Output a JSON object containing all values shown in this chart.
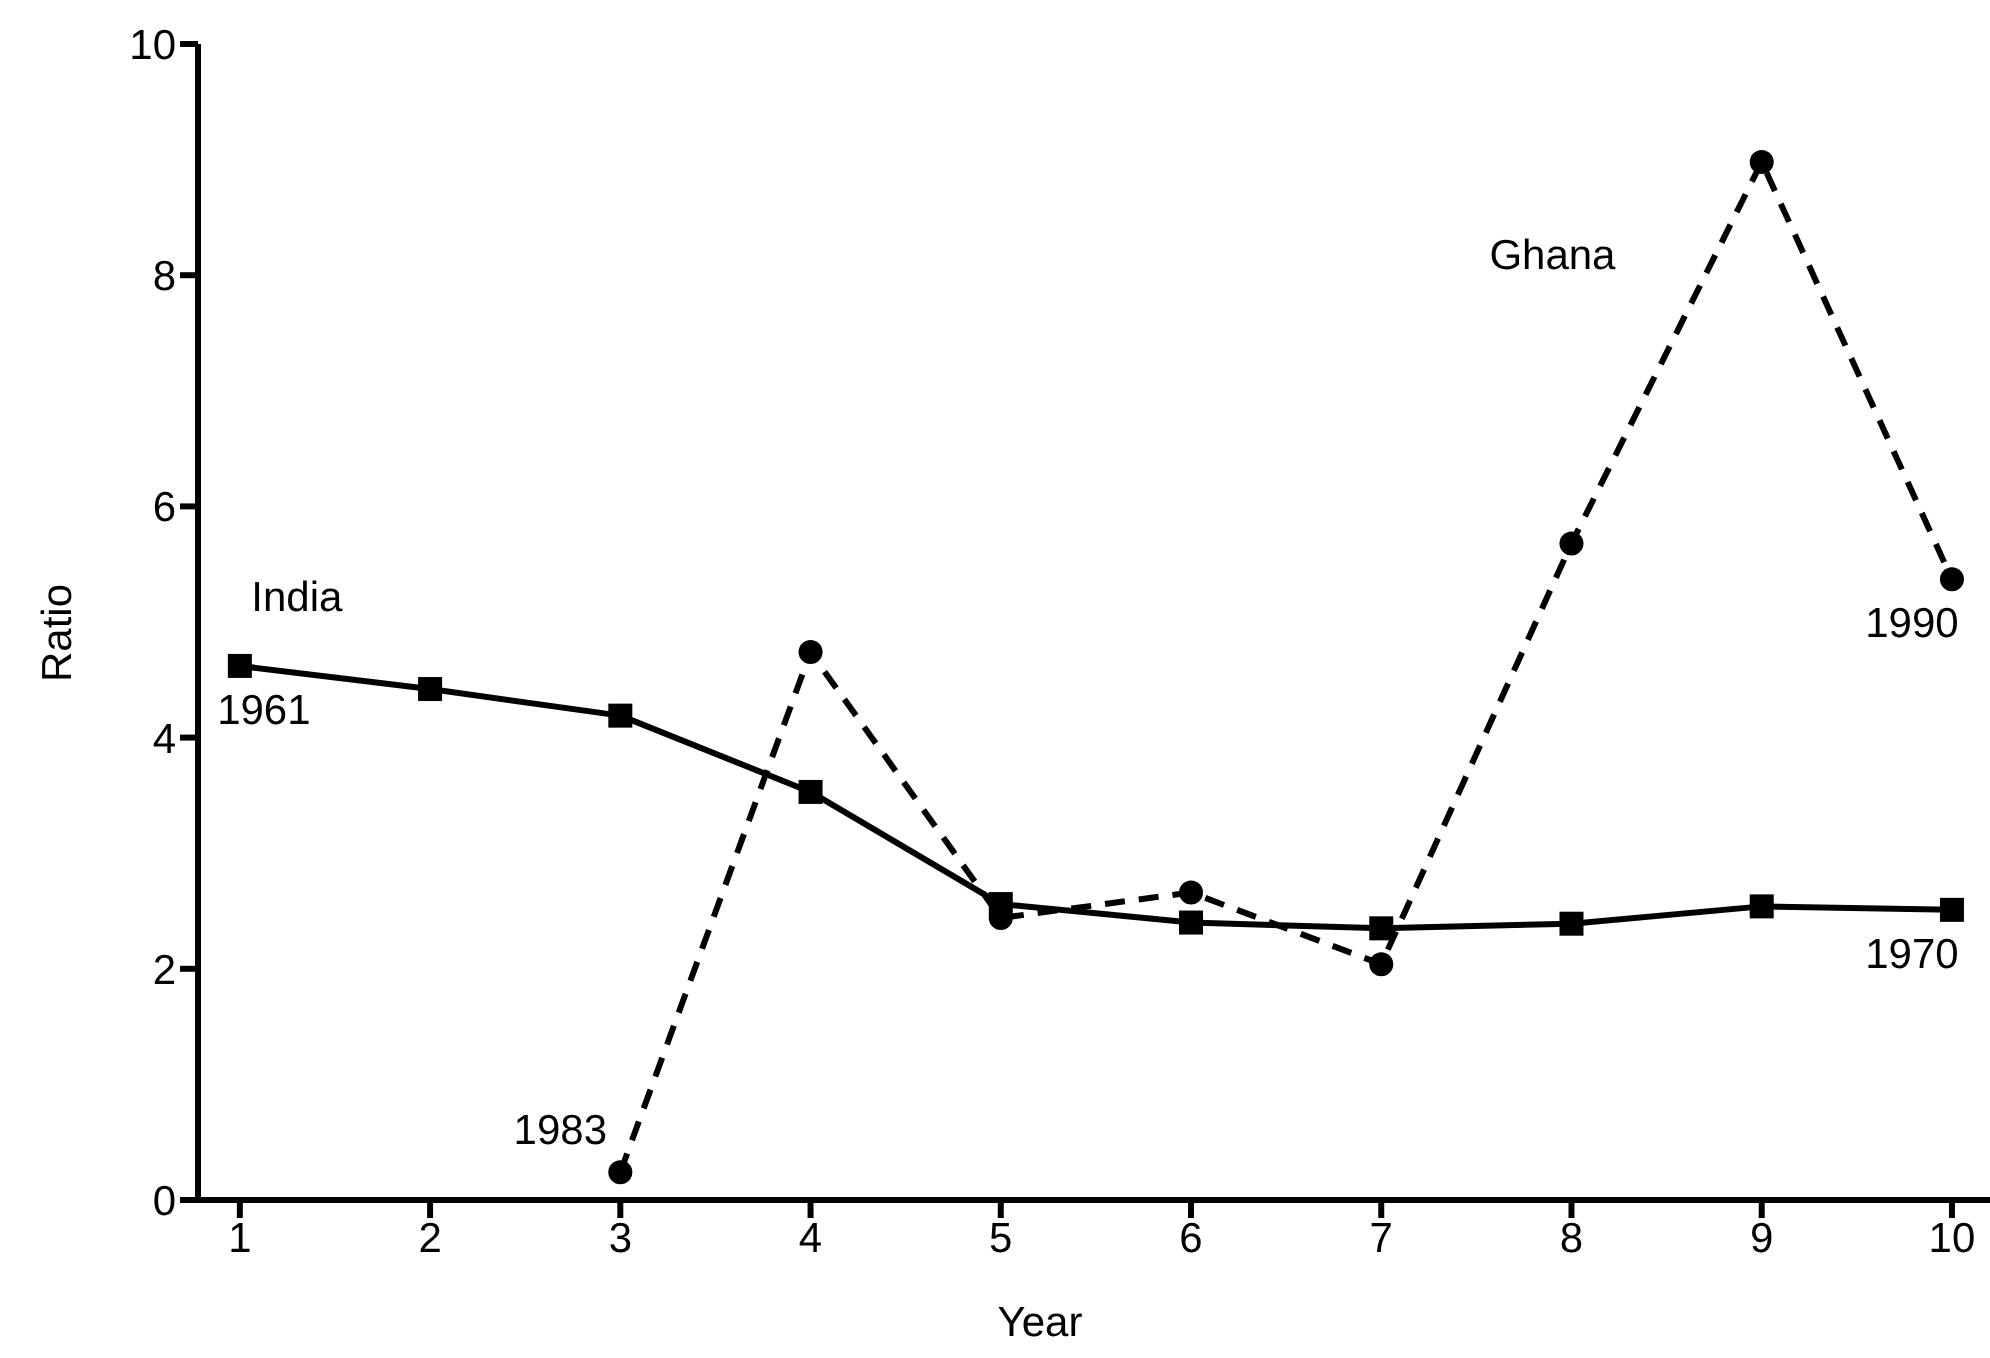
{
  "chart_data": {
    "type": "line",
    "xlabel": "Year",
    "ylabel": "Ratio",
    "x": [
      1,
      2,
      3,
      4,
      5,
      6,
      7,
      8,
      9,
      10
    ],
    "series": [
      {
        "name": "India",
        "color": "#000000",
        "marker": "square",
        "line_style": "solid",
        "values": [
          4.62,
          4.42,
          4.19,
          3.53,
          2.56,
          2.4,
          2.35,
          2.39,
          2.54,
          2.51
        ]
      },
      {
        "name": "Ghana",
        "color": "#000000",
        "marker": "circle",
        "line_style": "dashed",
        "values": [
          null,
          null,
          0.24,
          4.74,
          2.44,
          2.66,
          2.04,
          5.68,
          8.98,
          5.37
        ]
      }
    ],
    "annotations": [
      {
        "text": "1961",
        "x": 1,
        "y": 4.62
      },
      {
        "text": "1983",
        "x": 3,
        "y": 0.24
      },
      {
        "text": "1990",
        "x": 10,
        "y": 5.37
      },
      {
        "text": "1970",
        "x": 10,
        "y": 2.51
      }
    ],
    "xlim": [
      0.78,
      10.2
    ],
    "xticks": [
      1,
      2,
      3,
      4,
      5,
      6,
      7,
      8,
      9,
      10
    ],
    "ylim": [
      0,
      10
    ],
    "yticks": [
      0,
      2,
      4,
      6,
      8,
      10
    ],
    "grid": false,
    "legend": false
  }
}
